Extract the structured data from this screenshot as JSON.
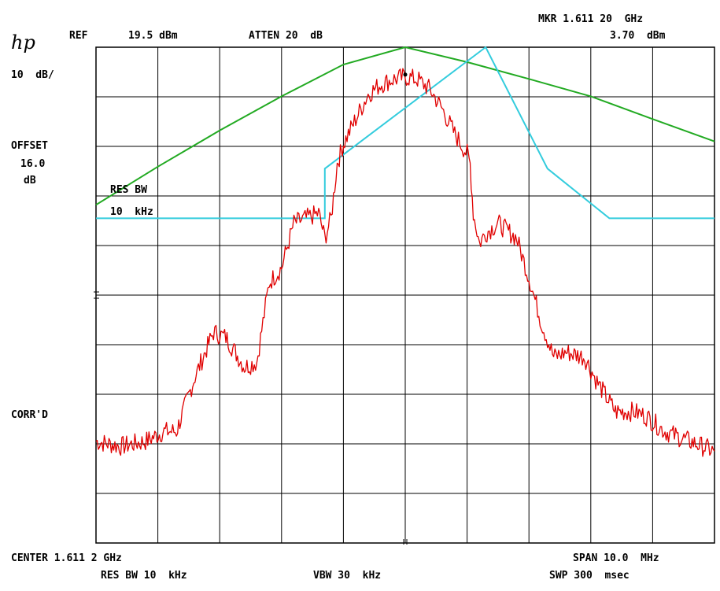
{
  "header": {
    "brand": "hp",
    "ref_label": "REF",
    "ref_value": "19.5 dBm",
    "atten": "ATTEN 20  dB",
    "marker_freq": "MKR 1.611 20  GHz",
    "marker_level": "3.70  dBm",
    "scale": "10  dB/"
  },
  "side": {
    "offset_label": "OFFSET",
    "offset_value": "16.0",
    "offset_unit": "dB",
    "corr": "CORR'D"
  },
  "overlay": {
    "resbw_label": "RES BW",
    "resbw_value": "10  kHz"
  },
  "footer": {
    "center": "CENTER 1.611 2 GHz",
    "span": "SPAN 10.0  MHz",
    "res_bw": "RES BW 10  kHz",
    "vbw": "VBW 30  kHz",
    "sweep": "SWP 300  msec"
  },
  "colors": {
    "grid": "#000000",
    "trace": "#e00000",
    "mask": "#33ccdd",
    "filter_curve": "#22aa22"
  },
  "chart_data": {
    "type": "line",
    "xlabel": "",
    "ylabel": "",
    "x_unit": "MHz offset from center",
    "xlim": [
      -5,
      5
    ],
    "ylim": [
      -80.5,
      19.5
    ],
    "grid": true,
    "series": [
      {
        "x": [
          -5.0,
          -4.6,
          -4.2,
          -3.9,
          -3.7,
          -3.4,
          -3.1,
          -2.9,
          -2.6,
          -2.4,
          -2.2,
          -2.0,
          -1.8,
          -1.6,
          -1.4,
          -1.3,
          -1.2,
          -1.1,
          -1.05,
          -1.0,
          -0.8,
          -0.6,
          -0.4,
          -0.2,
          0.0,
          0.2,
          0.4,
          0.6,
          0.8,
          1.0,
          1.05,
          1.1,
          1.2,
          1.3,
          1.5,
          1.8,
          2.0,
          2.2,
          2.4,
          2.6,
          2.9,
          3.1,
          3.4,
          3.7,
          3.9,
          4.2,
          4.6,
          5.0
        ],
        "values": [
          -60,
          -61,
          -60,
          -58,
          -58,
          -47,
          -38,
          -39,
          -45,
          -44,
          -28,
          -25,
          -16,
          -15,
          -14,
          -19,
          -15,
          -4,
          -2,
          0,
          5,
          10,
          12,
          13,
          13.5,
          13,
          11,
          7,
          2,
          -2,
          -4,
          -14,
          -20,
          -18,
          -16,
          -19,
          -27,
          -36,
          -43,
          -42,
          -43,
          -48,
          -54,
          -54,
          -55,
          -58,
          -60,
          -62
        ]
      },
      {
        "x": [
          -5,
          -4.0,
          -4.0,
          -3.0,
          -3.0,
          -1.3,
          -1.3,
          1.3,
          1.3,
          2.3,
          2.3,
          3.3,
          3.3,
          5
        ],
        "values": [
          -15,
          -15,
          -15,
          -15,
          -15,
          -15,
          -5,
          19.5,
          19.5,
          -5,
          -5,
          -15,
          -15,
          -15
        ]
      },
      {
        "x": [
          -5,
          -4.0,
          -3.0,
          -2.0,
          -1.0,
          0.0,
          1.0,
          2.0,
          3.0,
          4.0,
          5.0
        ],
        "values": [
          -12.3,
          -4.6,
          2.7,
          9.6,
          16.0,
          19.5,
          16.5,
          13.1,
          9.6,
          5.0,
          0.5
        ]
      }
    ]
  }
}
